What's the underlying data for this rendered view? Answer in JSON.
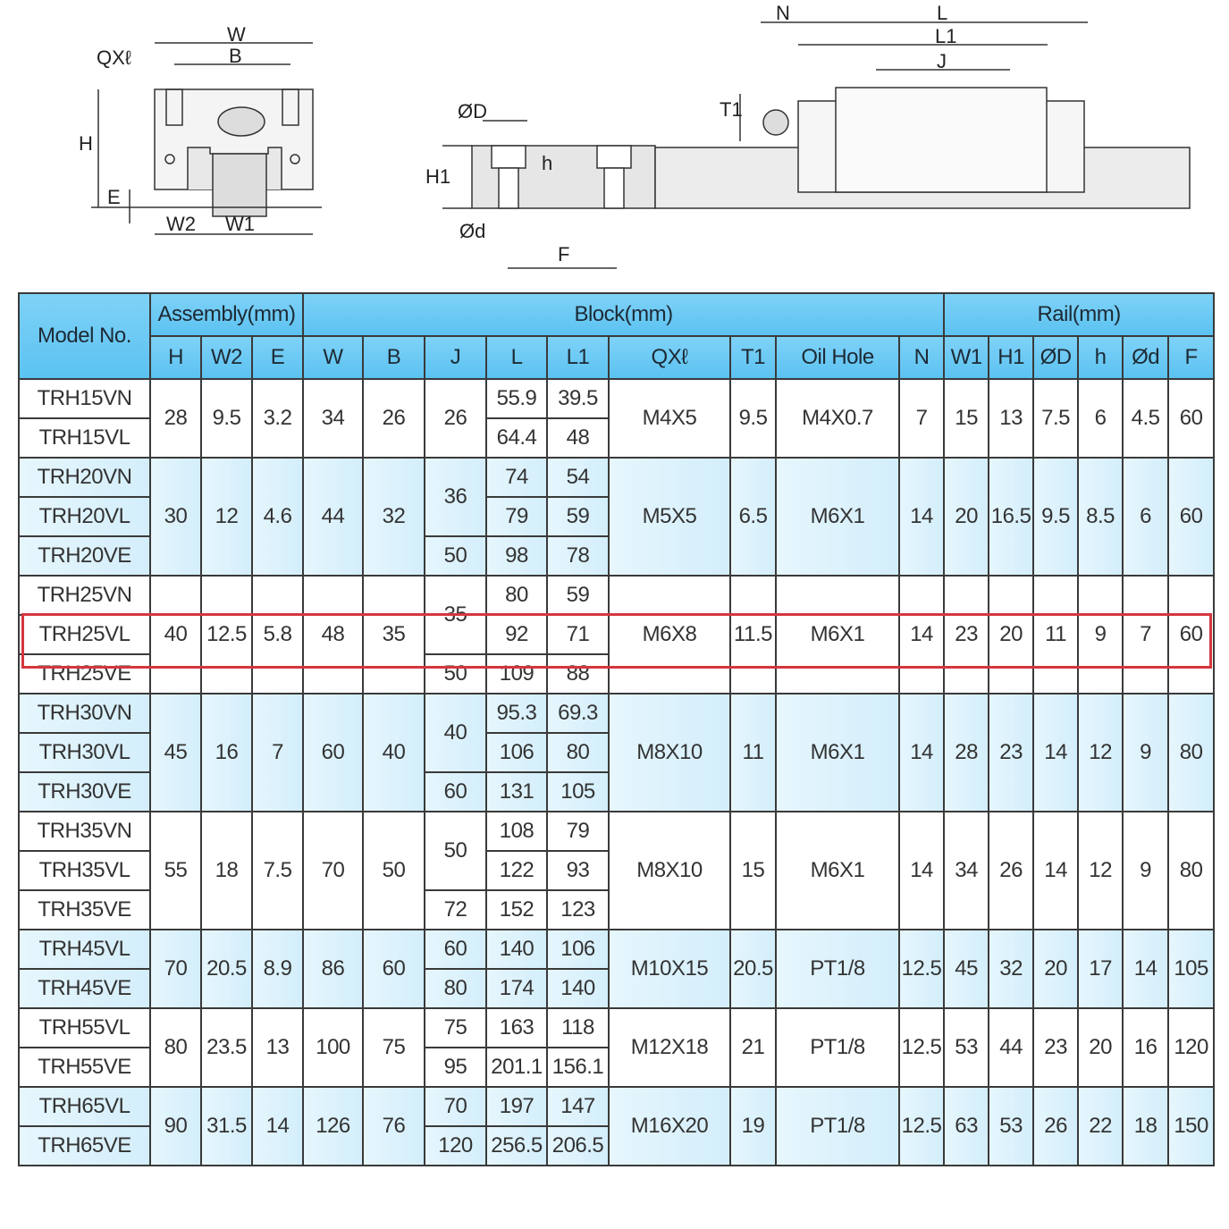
{
  "drawings": {
    "front_view_labels": [
      "W",
      "B",
      "QXℓ",
      "H",
      "E",
      "W2",
      "W1"
    ],
    "rail_section_labels": [
      "ØD",
      "H1",
      "h",
      "Ød",
      "F"
    ],
    "side_view_labels": [
      "N",
      "L",
      "L1",
      "J",
      "T1"
    ]
  },
  "colors": {
    "header": "#5bc2f1",
    "shaded_row": "#d8f0fb",
    "highlight": "#d4373d"
  },
  "table": {
    "header_model": "Model No.",
    "groups_header": [
      {
        "label": "Assembly(mm)",
        "span": 3
      },
      {
        "label": "Block(mm)",
        "span": 9
      },
      {
        "label": "Rail(mm)",
        "span": 6
      }
    ],
    "columns": [
      "H",
      "W2",
      "E",
      "W",
      "B",
      "J",
      "L",
      "L1",
      "QXℓ",
      "T1",
      "Oil Hole",
      "N",
      "W1",
      "H1",
      "ØD",
      "h",
      "Ød",
      "F"
    ],
    "highlighted_model": "TRH25VL",
    "groups": [
      {
        "models": [
          "TRH15VN",
          "TRH15VL"
        ],
        "shaded": false,
        "H": "28",
        "W2": "9.5",
        "E": "3.2",
        "W": "34",
        "B": "26",
        "J": [
          {
            "v": "26",
            "span": 2
          }
        ],
        "L": [
          "55.9",
          "64.4"
        ],
        "L1": [
          "39.5",
          "48"
        ],
        "QX": "M4X5",
        "T1": "9.5",
        "oil": "M4X0.7",
        "N": "7",
        "W1": "15",
        "H1": "13",
        "OD": "7.5",
        "h": "6",
        "od": "4.5",
        "F": "60"
      },
      {
        "models": [
          "TRH20VN",
          "TRH20VL",
          "TRH20VE"
        ],
        "shaded": true,
        "H": "30",
        "W2": "12",
        "E": "4.6",
        "W": "44",
        "B": "32",
        "J": [
          {
            "v": "36",
            "span": 2
          },
          {
            "v": "50",
            "span": 1
          }
        ],
        "L": [
          "74",
          "79",
          "98"
        ],
        "L1": [
          "54",
          "59",
          "78"
        ],
        "QX": "M5X5",
        "T1": "6.5",
        "oil": "M6X1",
        "N": "14",
        "W1": "20",
        "H1": "16.5",
        "OD": "9.5",
        "h": "8.5",
        "od": "6",
        "F": "60"
      },
      {
        "models": [
          "TRH25VN",
          "TRH25VL",
          "TRH25VE"
        ],
        "shaded": false,
        "H": "40",
        "W2": "12.5",
        "E": "5.8",
        "W": "48",
        "B": "35",
        "J": [
          {
            "v": "35",
            "span": 2
          },
          {
            "v": "50",
            "span": 1
          }
        ],
        "L": [
          "80",
          "92",
          "109"
        ],
        "L1": [
          "59",
          "71",
          "88"
        ],
        "QX": "M6X8",
        "T1": "11.5",
        "oil": "M6X1",
        "N": "14",
        "W1": "23",
        "H1": "20",
        "OD": "11",
        "h": "9",
        "od": "7",
        "F": "60"
      },
      {
        "models": [
          "TRH30VN",
          "TRH30VL",
          "TRH30VE"
        ],
        "shaded": true,
        "H": "45",
        "W2": "16",
        "E": "7",
        "W": "60",
        "B": "40",
        "J": [
          {
            "v": "40",
            "span": 2
          },
          {
            "v": "60",
            "span": 1
          }
        ],
        "L": [
          "95.3",
          "106",
          "131"
        ],
        "L1": [
          "69.3",
          "80",
          "105"
        ],
        "QX": "M8X10",
        "T1": "11",
        "oil": "M6X1",
        "N": "14",
        "W1": "28",
        "H1": "23",
        "OD": "14",
        "h": "12",
        "od": "9",
        "F": "80"
      },
      {
        "models": [
          "TRH35VN",
          "TRH35VL",
          "TRH35VE"
        ],
        "shaded": false,
        "H": "55",
        "W2": "18",
        "E": "7.5",
        "W": "70",
        "B": "50",
        "J": [
          {
            "v": "50",
            "span": 2
          },
          {
            "v": "72",
            "span": 1
          }
        ],
        "L": [
          "108",
          "122",
          "152"
        ],
        "L1": [
          "79",
          "93",
          "123"
        ],
        "QX": "M8X10",
        "T1": "15",
        "oil": "M6X1",
        "N": "14",
        "W1": "34",
        "H1": "26",
        "OD": "14",
        "h": "12",
        "od": "9",
        "F": "80"
      },
      {
        "models": [
          "TRH45VL",
          "TRH45VE"
        ],
        "shaded": true,
        "H": "70",
        "W2": "20.5",
        "E": "8.9",
        "W": "86",
        "B": "60",
        "J": [
          {
            "v": "60",
            "span": 1
          },
          {
            "v": "80",
            "span": 1
          }
        ],
        "L": [
          "140",
          "174"
        ],
        "L1": [
          "106",
          "140"
        ],
        "QX": "M10X15",
        "T1": "20.5",
        "oil": "PT1/8",
        "N": "12.5",
        "W1": "45",
        "H1": "32",
        "OD": "20",
        "h": "17",
        "od": "14",
        "F": "105"
      },
      {
        "models": [
          "TRH55VL",
          "TRH55VE"
        ],
        "shaded": false,
        "H": "80",
        "W2": "23.5",
        "E": "13",
        "W": "100",
        "B": "75",
        "J": [
          {
            "v": "75",
            "span": 1
          },
          {
            "v": "95",
            "span": 1
          }
        ],
        "L": [
          "163",
          "201.1"
        ],
        "L1": [
          "118",
          "156.1"
        ],
        "QX": "M12X18",
        "T1": "21",
        "oil": "PT1/8",
        "N": "12.5",
        "W1": "53",
        "H1": "44",
        "OD": "23",
        "h": "20",
        "od": "16",
        "F": "120"
      },
      {
        "models": [
          "TRH65VL",
          "TRH65VE"
        ],
        "shaded": true,
        "H": "90",
        "W2": "31.5",
        "E": "14",
        "W": "126",
        "B": "76",
        "J": [
          {
            "v": "70",
            "span": 1
          },
          {
            "v": "120",
            "span": 1
          }
        ],
        "L": [
          "197",
          "256.5"
        ],
        "L1": [
          "147",
          "206.5"
        ],
        "QX": "M16X20",
        "T1": "19",
        "oil": "PT1/8",
        "N": "12.5",
        "W1": "63",
        "H1": "53",
        "OD": "26",
        "h": "22",
        "od": "18",
        "F": "150"
      }
    ]
  }
}
